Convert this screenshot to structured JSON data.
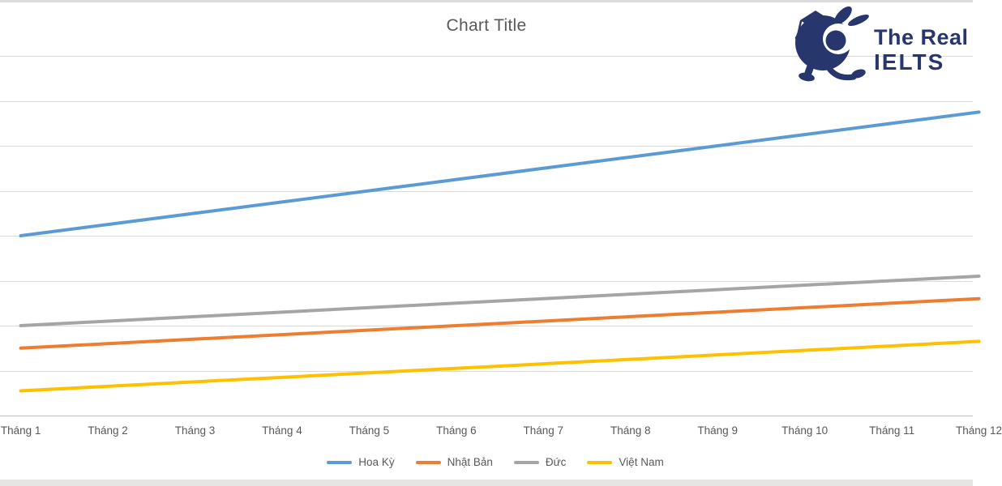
{
  "page": {
    "background": "#ffffff",
    "top_bar_color": "#dcdcdc",
    "bottom_bar_color": "#e7e5e3"
  },
  "logo": {
    "line1": "The Real",
    "line2": "IELTS",
    "color": "#27376e",
    "mascot": "snail-with-graduation-cap-icon"
  },
  "chart_data": {
    "type": "line",
    "title": "Chart Title",
    "title_color": "#595959",
    "categories": [
      "Tháng 1",
      "Tháng 2",
      "Tháng 3",
      "Tháng 4",
      "Tháng 5",
      "Tháng 6",
      "Tháng 7",
      "Tháng 8",
      "Tháng 9",
      "Tháng 10",
      "Tháng 11",
      "Tháng 12"
    ],
    "series": [
      {
        "name": "Hoa Kỳ",
        "color": "#5B9BD5",
        "values": [
          4.0,
          4.25,
          4.5,
          4.75,
          5.0,
          5.25,
          5.5,
          5.75,
          6.0,
          6.25,
          6.5,
          6.75
        ]
      },
      {
        "name": "Nhật Bản",
        "color": "#ED7D31",
        "values": [
          1.5,
          1.6,
          1.7,
          1.8,
          1.9,
          2.0,
          2.1,
          2.2,
          2.3,
          2.4,
          2.5,
          2.6
        ]
      },
      {
        "name": "Đức",
        "color": "#A5A5A5",
        "values": [
          2.0,
          2.1,
          2.2,
          2.3,
          2.4,
          2.5,
          2.6,
          2.7,
          2.8,
          2.9,
          3.0,
          3.1
        ]
      },
      {
        "name": "Việt Nam",
        "color": "#FFC000",
        "values": [
          0.55,
          0.65,
          0.75,
          0.85,
          0.95,
          1.05,
          1.15,
          1.25,
          1.35,
          1.45,
          1.55,
          1.65
        ]
      }
    ],
    "xlabel": "",
    "ylabel": "",
    "ylim": [
      0,
      8
    ],
    "y_gridline_step": 1,
    "y_tick_labels_visible": false,
    "grid": true,
    "grid_color": "#d9d9d9",
    "axis_line_color": "#bfbfbf",
    "label_color": "#595959",
    "legend_position": "bottom"
  }
}
